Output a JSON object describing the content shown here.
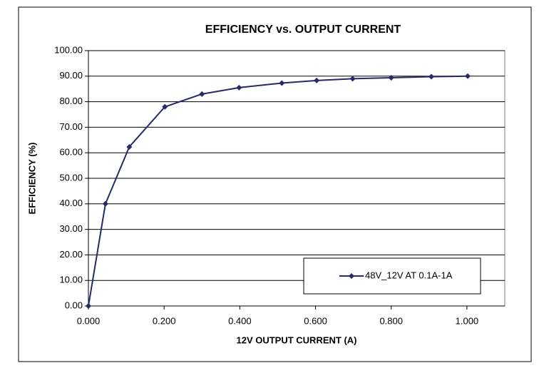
{
  "chart_data": {
    "type": "line",
    "title": "EFFICIENCY vs. OUTPUT CURRENT",
    "x_label": "12V OUTPUT CURRENT (A)",
    "y_label": "EFFICIENCY (%)",
    "x": [
      0,
      0.045,
      0.108,
      0.202,
      0.3,
      0.398,
      0.511,
      0.603,
      0.698,
      0.8,
      0.906,
      1.002
    ],
    "series": [
      {
        "name": "48V_12V AT 0.1A-1A",
        "color": "#26296b",
        "values": [
          0,
          40,
          62.3,
          78,
          83,
          85.5,
          87.3,
          88.3,
          89,
          89.4,
          89.8,
          90
        ]
      }
    ],
    "xlim": [
      0,
      1.1
    ],
    "xticks": [
      {
        "value": 0,
        "label": "0.000"
      },
      {
        "value": 0.2,
        "label": "0.200"
      },
      {
        "value": 0.4,
        "label": "0.400"
      },
      {
        "value": 0.6,
        "label": "0.600"
      },
      {
        "value": 0.8,
        "label": "0.800"
      },
      {
        "value": 1.0,
        "label": "1.000"
      }
    ],
    "ylim": [
      0,
      100
    ],
    "yticks": [
      {
        "value": 0,
        "label": "0.00"
      },
      {
        "value": 10,
        "label": "10.00"
      },
      {
        "value": 20,
        "label": "20.00"
      },
      {
        "value": 30,
        "label": "30.00"
      },
      {
        "value": 40,
        "label": "40.00"
      },
      {
        "value": 50,
        "label": "50.00"
      },
      {
        "value": 60,
        "label": "60.00"
      },
      {
        "value": 70,
        "label": "70.00"
      },
      {
        "value": 80,
        "label": "80.00"
      },
      {
        "value": 90,
        "label": "90.00"
      },
      {
        "value": 100,
        "label": "100.00"
      }
    ],
    "grid": true
  }
}
